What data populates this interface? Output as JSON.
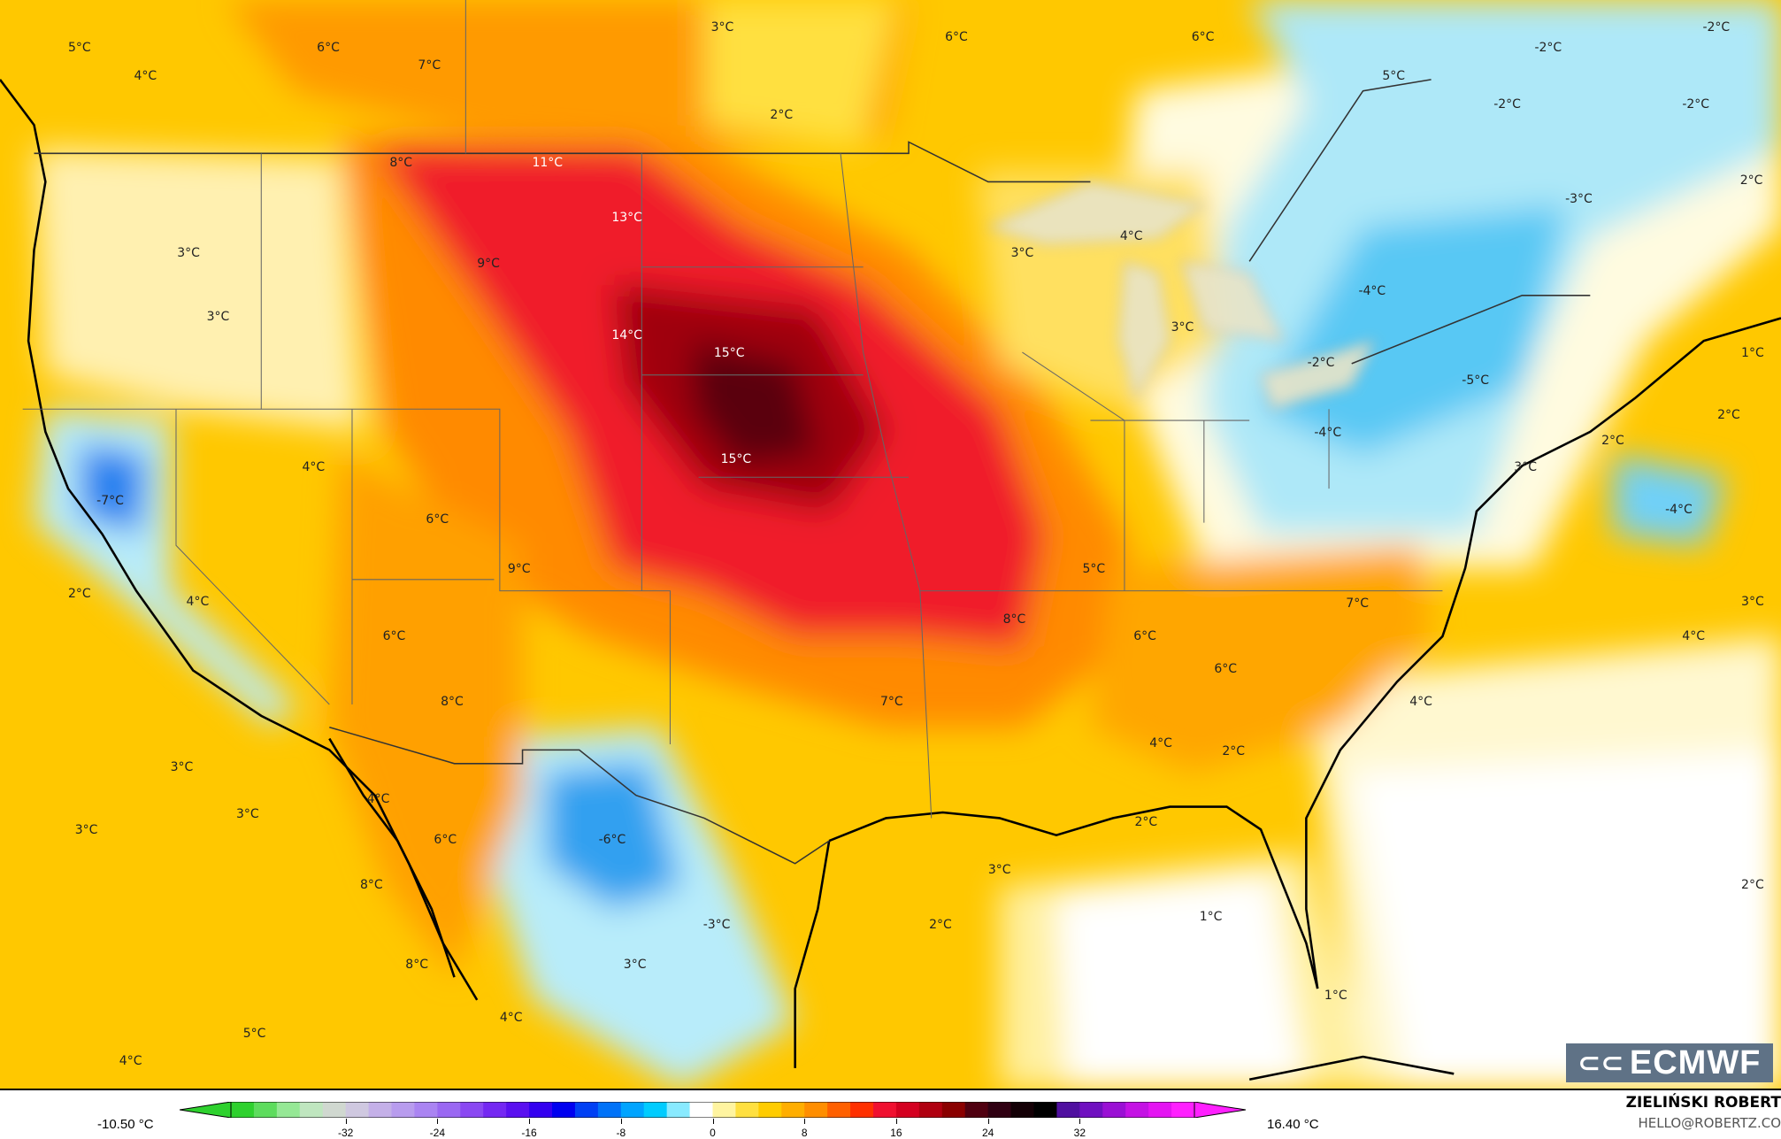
{
  "map": {
    "units": "°C",
    "labels": [
      "5°C",
      "6°C",
      "4°C",
      "7°C",
      "3°C",
      "2°C",
      "6°C",
      "6°C",
      "5°C",
      "-2°C",
      "-2°C",
      "-2°C",
      "-2°C",
      "2°C",
      "-3°C",
      "8°C",
      "11°C",
      "13°C",
      "9°C",
      "3°C",
      "3°C",
      "14°C",
      "15°C",
      "4°C",
      "3°C",
      "3°C",
      "-4°C",
      "-2°C",
      "-5°C",
      "1°C",
      "2°C",
      "2°C",
      "-4°C",
      "3°C",
      "-4°C",
      "-7°C",
      "4°C",
      "6°C",
      "15°C",
      "9°C",
      "5°C",
      "2°C",
      "4°C",
      "6°C",
      "7°C",
      "8°C",
      "6°C",
      "3°C",
      "4°C",
      "6°C",
      "8°C",
      "7°C",
      "4°C",
      "4°C",
      "2°C",
      "3°C",
      "4°C",
      "3°C",
      "3°C",
      "6°C",
      "-6°C",
      "2°C",
      "8°C",
      "3°C",
      "2°C",
      "1°C",
      "2°C",
      "-3°C",
      "8°C",
      "3°C",
      "1°C",
      "4°C",
      "5°C",
      "4°C"
    ]
  },
  "logo": {
    "text": "ECMWF"
  },
  "colorbar": {
    "min_label": "-10.50 °C",
    "max_label": "16.40 °C",
    "ticks": [
      "-32",
      "-24",
      "-16",
      "-8",
      "0",
      "8",
      "16",
      "24",
      "32"
    ],
    "colors": [
      "#2ed12e",
      "#5ddc5d",
      "#95e895",
      "#bfe6bf",
      "#d0d8d0",
      "#cfc8e0",
      "#c4b0e8",
      "#b89cee",
      "#aa84f2",
      "#9a68f2",
      "#8a48f2",
      "#7428f2",
      "#5a10f0",
      "#3400f0",
      "#0000f0",
      "#0040f4",
      "#0072f8",
      "#00a4ff",
      "#00ccff",
      "#88eaff",
      "#ffffff",
      "#fff4a0",
      "#ffe040",
      "#ffcc00",
      "#ffae00",
      "#ff8e00",
      "#ff6000",
      "#ff3000",
      "#f01030",
      "#d40020",
      "#b00010",
      "#8a0000",
      "#500010",
      "#300012",
      "#140006",
      "#000000",
      "#5010a0",
      "#7010c0",
      "#9a10d4",
      "#c412e4",
      "#e414f2",
      "#ff20ff"
    ]
  },
  "credit": {
    "author": "ZIELIŃSKI ROBERT",
    "email": "HELLO@ROBERTZ.CO"
  }
}
